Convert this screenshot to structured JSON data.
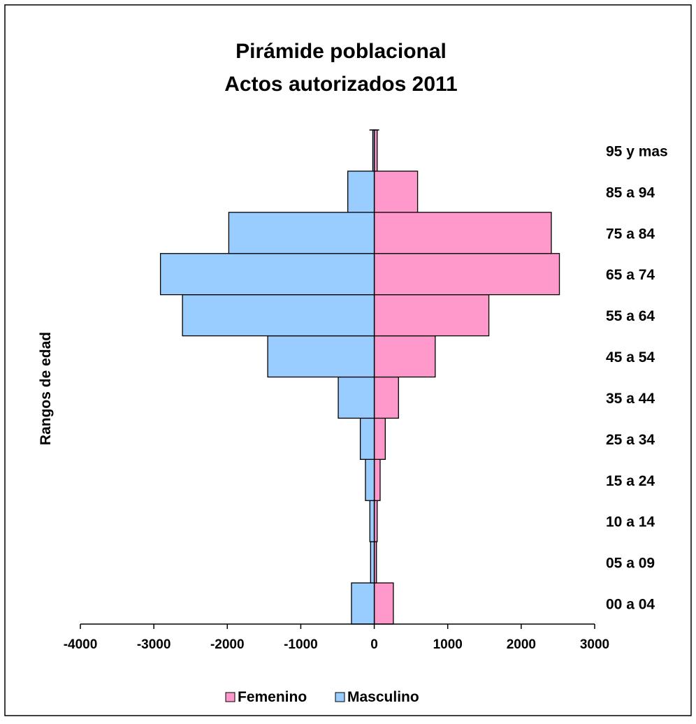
{
  "chart_data": {
    "type": "bar",
    "orientation": "horizontal",
    "title": [
      "Pirámide poblacional",
      "Actos autorizados 2011"
    ],
    "ylabel": "Rangos de edad",
    "xlabel": "",
    "xlim": [
      -4000,
      3000
    ],
    "xticks": [
      -4000,
      -3000,
      -2000,
      -1000,
      0,
      1000,
      2000,
      3000
    ],
    "xtick_labels": [
      "-4000",
      "-3000",
      "-2000",
      "-1000",
      "0",
      "1000",
      "2000",
      "3000"
    ],
    "categories": [
      "00 a 04",
      "05 a 09",
      "10 a 14",
      "15 a 24",
      "25 a 34",
      "35 a 44",
      "45 a 54",
      "55 a 64",
      "65 a 74",
      "75 a 84",
      "85 a 94",
      "95 y mas"
    ],
    "series": [
      {
        "name": "Femenino",
        "color": "#ff99cc",
        "values": [
          260,
          30,
          40,
          80,
          150,
          330,
          830,
          1560,
          2520,
          2410,
          590,
          40
        ]
      },
      {
        "name": "Masculino",
        "color": "#99ccff",
        "values": [
          -310,
          -50,
          -60,
          -120,
          -190,
          -490,
          -1450,
          -2610,
          -2910,
          -1980,
          -360,
          -20
        ]
      }
    ],
    "grid": false,
    "legend_position": "bottom"
  }
}
